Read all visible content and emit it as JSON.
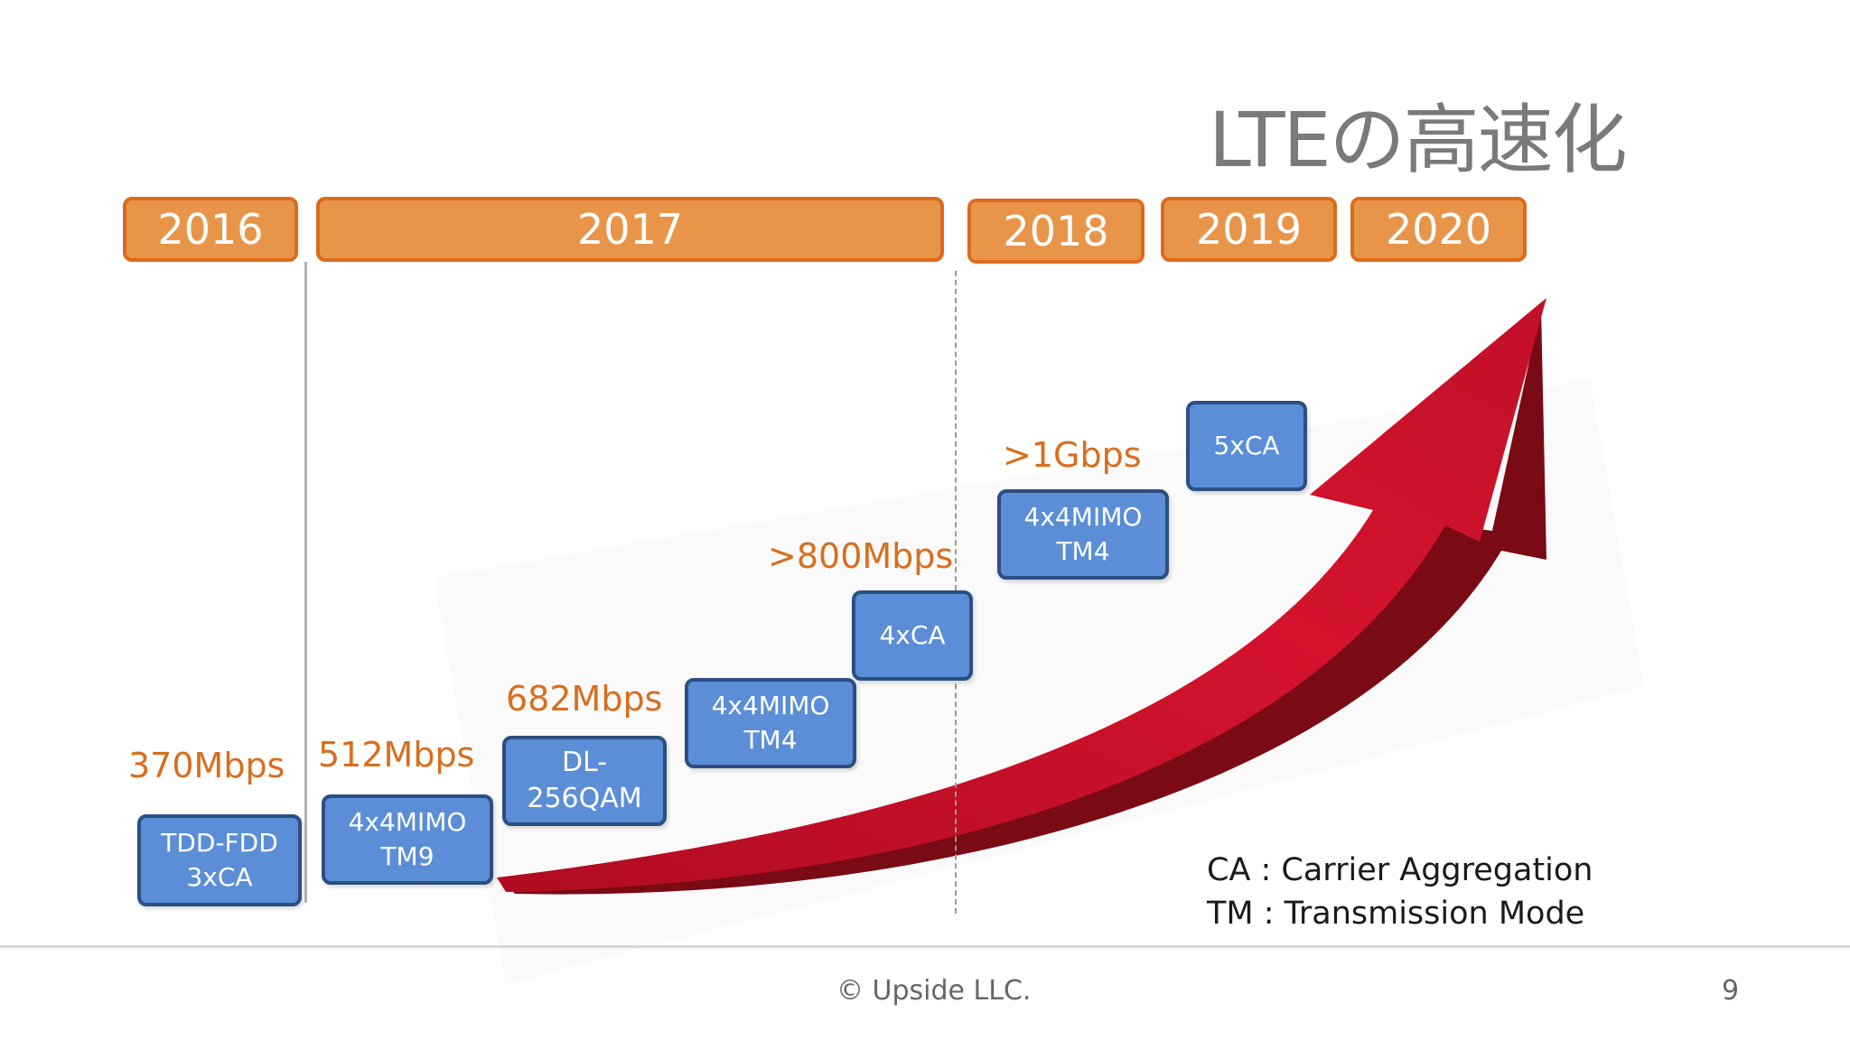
{
  "title": "LTEの高速化",
  "years": [
    "2016",
    "2017",
    "2018",
    "2019",
    "2020"
  ],
  "speeds": [
    "370Mbps",
    "512Mbps",
    "682Mbps",
    ">800Mbps",
    ">1Gbps"
  ],
  "techs": [
    {
      "line1": "TDD-FDD",
      "line2": "3xCA"
    },
    {
      "line1": "4x4MIMO",
      "line2": "TM9"
    },
    {
      "line1": "DL-",
      "line2": "256QAM"
    },
    {
      "line1": "4x4MIMO",
      "line2": "TM4"
    },
    {
      "line1": "4xCA",
      "line2": ""
    },
    {
      "line1": "4x4MIMO",
      "line2": "TM4"
    },
    {
      "line1": "5xCA",
      "line2": ""
    }
  ],
  "legend": {
    "ca": "CA  : Carrier Aggregation",
    "tm": "TM : Transmission Mode"
  },
  "footer": {
    "copyright": "© Upside LLC.",
    "page": "9"
  },
  "colors": {
    "year_fill": "#e8954a",
    "year_border": "#dc6b1c",
    "speed_text": "#d86e1e",
    "tech_fill": "#5b8ed6",
    "tech_border": "#2c4f83",
    "arrow": "#c8102e"
  }
}
